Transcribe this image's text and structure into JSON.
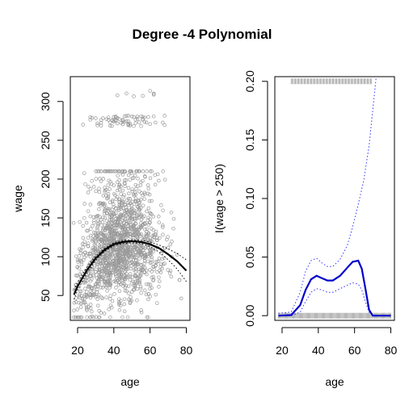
{
  "figure_title": "Degree -4 Polynomial",
  "chart_data": [
    {
      "type": "scatter",
      "title": "",
      "xlabel": "age",
      "ylabel": "wage",
      "xlim": [
        16,
        82
      ],
      "ylim": [
        18,
        332
      ],
      "x_ticks": [
        20,
        40,
        60,
        80
      ],
      "y_ticks": [
        50,
        100,
        150,
        200,
        250,
        300
      ],
      "grid": false,
      "colors": {
        "points": "#999999",
        "fit": "#000000",
        "band": "#000000"
      },
      "fit_curve": {
        "x": [
          18,
          20,
          25,
          30,
          35,
          40,
          45,
          50,
          55,
          60,
          65,
          70,
          75,
          80
        ],
        "y": [
          51,
          62,
          82,
          98,
          109,
          116,
          119,
          120,
          119,
          116,
          111,
          103,
          94,
          82
        ]
      },
      "band_upper": {
        "x": [
          18,
          20,
          25,
          30,
          35,
          40,
          45,
          50,
          55,
          60,
          65,
          70,
          75,
          80
        ],
        "y": [
          57,
          67,
          86,
          101,
          111,
          118,
          121,
          122,
          121,
          119,
          115,
          110,
          104,
          96
        ]
      },
      "band_lower": {
        "x": [
          18,
          20,
          25,
          30,
          35,
          40,
          45,
          50,
          55,
          60,
          65,
          70,
          75,
          80
        ],
        "y": [
          45,
          57,
          78,
          95,
          107,
          114,
          117,
          118,
          117,
          113,
          106,
          96,
          84,
          68
        ]
      },
      "points_summary": "wage vs age for about 3000 workers: dense cloud mostly 50-200 between ages 20 and 70; high earners band near 270-320"
    },
    {
      "type": "line",
      "title": "",
      "xlabel": "age",
      "ylabel": "I(wage > 250)",
      "xlim": [
        16,
        82
      ],
      "ylim": [
        -0.004,
        0.204
      ],
      "x_ticks": [
        20,
        40,
        60,
        80
      ],
      "y_ticks": [
        "0.00",
        "0.05",
        "0.10",
        "0.15",
        "0.20"
      ],
      "grid": false,
      "colors": {
        "fit": "#0000cc",
        "band": "#3333ff",
        "rug": "#888888"
      },
      "fit_curve": {
        "x": [
          18,
          25,
          30,
          33,
          36,
          39,
          42,
          45,
          48,
          52,
          56,
          59,
          62,
          64,
          66,
          68,
          70,
          75,
          80
        ],
        "y": [
          0.0,
          0.0005,
          0.009,
          0.022,
          0.031,
          0.034,
          0.032,
          0.03,
          0.03,
          0.034,
          0.041,
          0.046,
          0.047,
          0.04,
          0.023,
          0.005,
          0.0,
          0.0,
          0.0
        ]
      },
      "band_upper": {
        "x": [
          18,
          25,
          30,
          33,
          36,
          39,
          42,
          45,
          48,
          52,
          56,
          59,
          62,
          65,
          68,
          70,
          72
        ],
        "y": [
          0.002,
          0.003,
          0.02,
          0.038,
          0.047,
          0.049,
          0.045,
          0.042,
          0.042,
          0.048,
          0.06,
          0.076,
          0.095,
          0.115,
          0.145,
          0.175,
          0.205
        ]
      },
      "band_lower": {
        "x": [
          18,
          25,
          30,
          33,
          36,
          39,
          42,
          45,
          48,
          52,
          56,
          59,
          62,
          64,
          66,
          68,
          70
        ],
        "y": [
          0.0,
          0.0,
          0.003,
          0.012,
          0.02,
          0.023,
          0.022,
          0.02,
          0.02,
          0.023,
          0.026,
          0.028,
          0.027,
          0.022,
          0.012,
          0.003,
          0.0
        ]
      },
      "rug_top": {
        "y": 0.2,
        "x_range": [
          25,
          70
        ],
        "description": "ages of workers with wage > 250"
      },
      "rug_bottom": {
        "y": 0.0,
        "x_range": [
          18,
          80
        ],
        "description": "ages of workers with wage <= 250"
      }
    }
  ]
}
